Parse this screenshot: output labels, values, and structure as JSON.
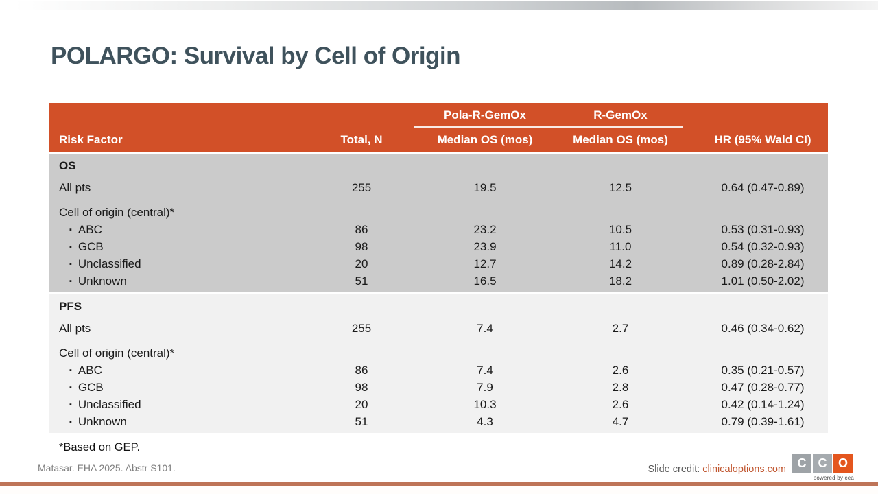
{
  "slide": {
    "title": "POLARGO: Survival by Cell of Origin",
    "footnote": "*Based on GEP.",
    "source": "Matasar. EHA 2025. Abstr S101.",
    "credit": {
      "label": "Slide credit: ",
      "link": "clinicaloptions.com"
    },
    "logo": {
      "letters": [
        "C",
        "C",
        "O"
      ],
      "tagline": "powered by cea"
    }
  },
  "table": {
    "group_columns": [
      {
        "label": "Pola-R-GemOx"
      },
      {
        "label": "R-GemOx"
      }
    ],
    "columns": [
      "Risk Factor",
      "Total, N",
      "Median OS (mos)",
      "Median OS (mos)",
      "HR (95% Wald CI)"
    ],
    "sections": [
      {
        "name": "OS",
        "rows": [
          {
            "label": "All pts",
            "bullet": false,
            "values": [
              "255",
              "19.5",
              "12.5",
              "0.64 (0.47-0.89)"
            ]
          },
          {
            "label": "Cell of origin (central)*",
            "bullet": false,
            "values": [
              "",
              "",
              "",
              ""
            ]
          },
          {
            "label": "ABC",
            "bullet": true,
            "values": [
              "86",
              "23.2",
              "10.5",
              "0.53 (0.31-0.93)"
            ]
          },
          {
            "label": "GCB",
            "bullet": true,
            "values": [
              "98",
              "23.9",
              "11.0",
              "0.54 (0.32-0.93)"
            ]
          },
          {
            "label": "Unclassified",
            "bullet": true,
            "values": [
              "20",
              "12.7",
              "14.2",
              "0.89 (0.28-2.84)"
            ]
          },
          {
            "label": "Unknown",
            "bullet": true,
            "values": [
              "51",
              "16.5",
              "18.2",
              "1.01 (0.50-2.02)"
            ]
          }
        ]
      },
      {
        "name": "PFS",
        "rows": [
          {
            "label": "All pts",
            "bullet": false,
            "values": [
              "255",
              "7.4",
              "2.7",
              "0.46 (0.34-0.62)"
            ]
          },
          {
            "label": "Cell of origin (central)*",
            "bullet": false,
            "values": [
              "",
              "",
              "",
              ""
            ]
          },
          {
            "label": "ABC",
            "bullet": true,
            "values": [
              "86",
              "7.4",
              "2.6",
              "0.35 (0.21-0.57)"
            ]
          },
          {
            "label": "GCB",
            "bullet": true,
            "values": [
              "98",
              "7.9",
              "2.8",
              "0.47 (0.28-0.77)"
            ]
          },
          {
            "label": "Unclassified",
            "bullet": true,
            "values": [
              "20",
              "10.3",
              "2.6",
              "0.42 (0.14-1.24)"
            ]
          },
          {
            "label": "Unknown",
            "bullet": true,
            "values": [
              "51",
              "4.3",
              "4.7",
              "0.79 (0.39-1.61)"
            ]
          }
        ]
      }
    ]
  },
  "colors": {
    "header_orange": "#D25028",
    "os_section_bg": "#CBCBCB",
    "pfs_section_bg": "#F1F1F1",
    "title_text": "#3F525C",
    "link_orange": "#C0552E",
    "logo_gray": "#9EA3A7",
    "logo_orange": "#E4561E",
    "bottom_rule": "#BE7457"
  }
}
